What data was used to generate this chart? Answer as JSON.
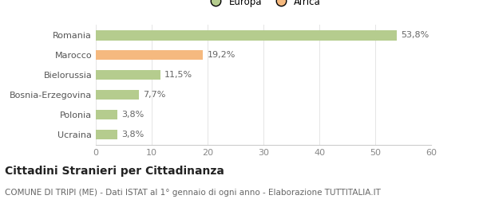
{
  "categories": [
    "Ucraina",
    "Polonia",
    "Bosnia-Erzegovina",
    "Bielorussia",
    "Marocco",
    "Romania"
  ],
  "values": [
    3.8,
    3.8,
    7.7,
    11.5,
    19.2,
    53.8
  ],
  "labels": [
    "3,8%",
    "3,8%",
    "7,7%",
    "11,5%",
    "19,2%",
    "53,8%"
  ],
  "colors": [
    "#b5cc8e",
    "#b5cc8e",
    "#b5cc8e",
    "#b5cc8e",
    "#f5b97f",
    "#b5cc8e"
  ],
  "legend_entries": [
    {
      "label": "Europa",
      "color": "#b5cc8e"
    },
    {
      "label": "Africa",
      "color": "#f5b97f"
    }
  ],
  "xlim": [
    0,
    60
  ],
  "xticks": [
    0,
    10,
    20,
    30,
    40,
    50,
    60
  ],
  "title": "Cittadini Stranieri per Cittadinanza",
  "subtitle": "COMUNE DI TRIPI (ME) - Dati ISTAT al 1° gennaio di ogni anno - Elaborazione TUTTITALIA.IT",
  "background_color": "#ffffff",
  "bar_height": 0.5,
  "title_fontsize": 10,
  "subtitle_fontsize": 7.5,
  "label_fontsize": 8,
  "tick_fontsize": 8,
  "legend_fontsize": 8.5
}
